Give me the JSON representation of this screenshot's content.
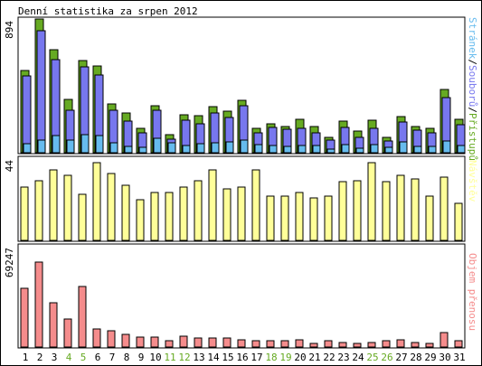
{
  "title": "Denní statistika za srpen 2012",
  "colors": {
    "hits": "#66aa22",
    "files": "#7777ee",
    "pages": "#66bbee",
    "visits": "#ffff99",
    "kbytes": "#f58c8c",
    "weekend_label": "#66aa22",
    "weekday_label": "#000000",
    "border": "#000000",
    "plot_bg": "#ffffff"
  },
  "chart_data": [
    {
      "type": "bar",
      "panel": "top",
      "ymax_label": "894",
      "ylim": [
        0,
        894
      ],
      "legend_parts": [
        "Stránek",
        "/",
        "Souborů",
        "/",
        "Přístupů"
      ],
      "categories": [
        "1",
        "2",
        "3",
        "4",
        "5",
        "6",
        "7",
        "8",
        "9",
        "10",
        "11",
        "12",
        "13",
        "14",
        "15",
        "16",
        "17",
        "18",
        "19",
        "20",
        "21",
        "22",
        "23",
        "24",
        "25",
        "26",
        "27",
        "28",
        "29",
        "30",
        "31"
      ],
      "weekend_days": [
        "4",
        "5",
        "11",
        "12",
        "18",
        "19",
        "25",
        "26"
      ],
      "series": [
        {
          "name": "Přístupů",
          "key": "hits",
          "values": [
            551,
            894,
            691,
            354,
            616,
            580,
            329,
            268,
            166,
            317,
            119,
            251,
            246,
            309,
            276,
            350,
            165,
            192,
            178,
            221,
            175,
            104,
            211,
            143,
            215,
            100,
            239,
            175,
            166,
            425,
            221
          ]
        },
        {
          "name": "Souborů",
          "key": "files",
          "values": [
            516,
            816,
            622,
            286,
            571,
            519,
            283,
            212,
            134,
            285,
            92,
            217,
            194,
            263,
            234,
            314,
            130,
            167,
            160,
            165,
            135,
            83,
            168,
            100,
            163,
            76,
            203,
            151,
            134,
            370,
            185
          ]
        },
        {
          "name": "Stránek",
          "key": "pages",
          "values": [
            59,
            82,
            114,
            82,
            119,
            115,
            68,
            44,
            34,
            96,
            65,
            51,
            58,
            67,
            73,
            84,
            54,
            47,
            42,
            51,
            46,
            27,
            55,
            29,
            54,
            35,
            72,
            41,
            41,
            81,
            46
          ]
        }
      ]
    },
    {
      "type": "bar",
      "panel": "middle",
      "ymax_label": "44",
      "ylim": [
        0,
        44
      ],
      "legend_parts": [
        "Návštěv"
      ],
      "categories": [
        "1",
        "2",
        "3",
        "4",
        "5",
        "6",
        "7",
        "8",
        "9",
        "10",
        "11",
        "12",
        "13",
        "14",
        "15",
        "16",
        "17",
        "18",
        "19",
        "20",
        "21",
        "22",
        "23",
        "24",
        "25",
        "26",
        "27",
        "28",
        "29",
        "30",
        "31"
      ],
      "series": [
        {
          "name": "Návštěv",
          "key": "visits",
          "values": [
            30,
            34,
            40,
            37,
            26,
            44,
            38,
            31,
            23,
            27,
            27,
            30,
            34,
            40,
            29,
            30,
            40,
            25,
            25,
            27,
            24,
            25,
            33,
            34,
            44,
            33,
            37,
            35,
            25,
            36,
            21
          ]
        }
      ]
    },
    {
      "type": "bar",
      "panel": "bottom",
      "ymax_label": "69247",
      "ylim": [
        0,
        69247
      ],
      "legend_parts": [
        "Objem přenosu"
      ],
      "categories": [
        "1",
        "2",
        "3",
        "4",
        "5",
        "6",
        "7",
        "8",
        "9",
        "10",
        "11",
        "12",
        "13",
        "14",
        "15",
        "16",
        "17",
        "18",
        "19",
        "20",
        "21",
        "22",
        "23",
        "24",
        "25",
        "26",
        "27",
        "28",
        "29",
        "30",
        "31"
      ],
      "series": [
        {
          "name": "Objem přenosu",
          "key": "kbytes",
          "values": [
            48000,
            69247,
            36000,
            23000,
            49000,
            15000,
            13000,
            10000,
            8000,
            8000,
            5000,
            9000,
            7000,
            7000,
            7000,
            6000,
            5000,
            5000,
            5000,
            6000,
            3000,
            5000,
            4000,
            3000,
            4000,
            5000,
            6000,
            4000,
            3000,
            12000,
            5000
          ]
        }
      ]
    }
  ]
}
